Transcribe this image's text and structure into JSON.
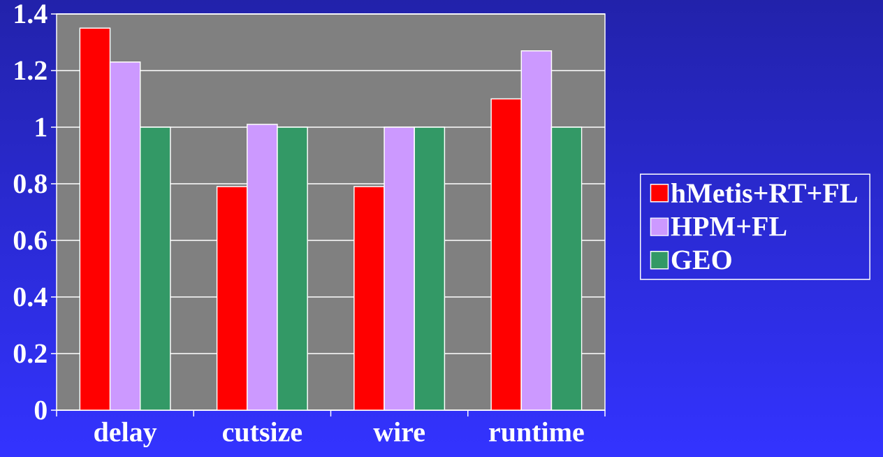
{
  "chart_data": {
    "type": "bar",
    "categories": [
      "delay",
      "cutsize",
      "wire",
      "runtime"
    ],
    "series": [
      {
        "name": "hMetis+RT+FL",
        "color": "#ff0000",
        "values": [
          1.35,
          0.79,
          0.79,
          1.1
        ]
      },
      {
        "name": "HPM+FL",
        "color": "#cc99ff",
        "values": [
          1.23,
          1.01,
          1,
          1.27
        ]
      },
      {
        "name": "GEO",
        "color": "#339966",
        "values": [
          1,
          1,
          1,
          1
        ]
      }
    ],
    "ylim": [
      0,
      1.4
    ],
    "yticks": [
      0,
      0.2,
      0.4,
      0.6,
      0.8,
      1,
      1.2,
      1.4
    ],
    "grid": "y",
    "legend": "right"
  }
}
